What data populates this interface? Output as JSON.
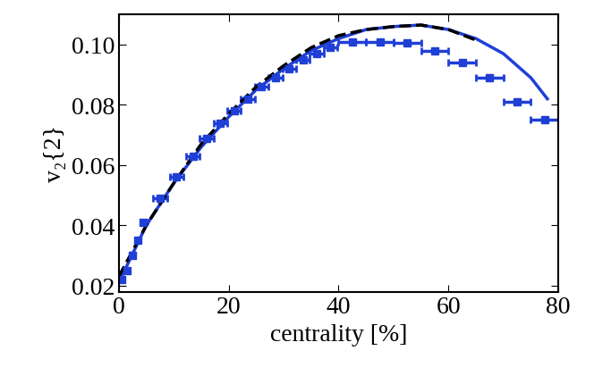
{
  "chart_data": {
    "type": "line",
    "xlabel": "centrality [%]",
    "ylabel": "v₂{2}",
    "xlim": [
      0,
      80
    ],
    "ylim": [
      0.018,
      0.11
    ],
    "xticks": [
      0,
      20,
      40,
      60,
      80
    ],
    "yticks": [
      0.02,
      0.04,
      0.06,
      0.08,
      {
        "value": 0.1,
        "label": "0.10"
      }
    ],
    "grid": false,
    "series": [
      {
        "type": "scatter",
        "color": "#1f3fd6",
        "marker": "square",
        "x": [
          0.5,
          1.5,
          2.5,
          3.5,
          4.5,
          7.5,
          10.5,
          13.5,
          16,
          18.5,
          21,
          23.5,
          26,
          28.5,
          31,
          33.5,
          36,
          38.5,
          42.5,
          47.5,
          52.5,
          57.5,
          62.5,
          67.5,
          72.5,
          77.5
        ],
        "values": [
          0.022,
          0.025,
          0.03,
          0.035,
          0.041,
          0.049,
          0.056,
          0.063,
          0.069,
          0.074,
          0.078,
          0.082,
          0.086,
          0.089,
          0.092,
          0.095,
          0.097,
          0.099,
          0.101,
          0.101,
          0.1005,
          0.098,
          0.094,
          0.089,
          0.081,
          0.075
        ],
        "xerr": [
          0.5,
          0.5,
          0.5,
          0.5,
          0.5,
          1.25,
          1.25,
          1.25,
          1.25,
          1.25,
          1.25,
          1.25,
          1.25,
          1.25,
          1.25,
          1.25,
          1.25,
          1.25,
          2.5,
          2.5,
          2.5,
          2.5,
          2.5,
          2.5,
          2.5,
          2.5
        ]
      },
      {
        "type": "line",
        "color": "#1f3fd6",
        "line_style": "solid",
        "x": [
          0,
          5,
          10,
          15,
          20,
          25,
          30,
          35,
          40,
          45,
          50,
          55,
          60,
          65,
          70,
          75,
          78
        ],
        "values": [
          0.021,
          0.04,
          0.054,
          0.066,
          0.076,
          0.085,
          0.092,
          0.098,
          0.102,
          0.105,
          0.106,
          0.1065,
          0.105,
          0.102,
          0.097,
          0.089,
          0.082
        ]
      },
      {
        "type": "line",
        "color": "#000000",
        "line_style": "dashed",
        "x": [
          0,
          5,
          10,
          15,
          20,
          25,
          30,
          35,
          40,
          45,
          50,
          55,
          60,
          65
        ],
        "values": [
          0.023,
          0.04,
          0.054,
          0.067,
          0.077,
          0.086,
          0.093,
          0.099,
          0.103,
          0.105,
          0.106,
          0.1065,
          0.105,
          0.1015
        ]
      }
    ]
  }
}
